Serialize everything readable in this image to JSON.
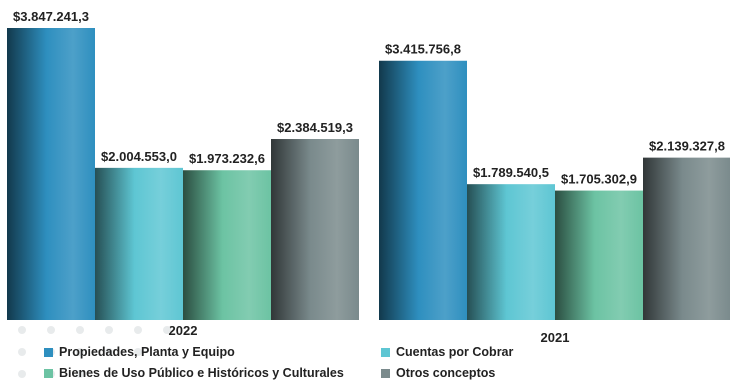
{
  "chart_data": {
    "type": "bar",
    "categories": [
      "2022",
      "2021"
    ],
    "series": [
      {
        "name": "Propiedades, Planta y Equipo",
        "values": [
          3847241.3,
          3415756.8
        ],
        "labels": [
          "$3.847.241,3",
          "$3.415.756,8"
        ],
        "color": "#2e8fbf"
      },
      {
        "name": "Cuentas por Cobrar",
        "values": [
          2004553.0,
          1789540.5
        ],
        "labels": [
          "$2.004.553,0",
          "$1.789.540,5"
        ],
        "color": "#5ec6d3"
      },
      {
        "name": "Bienes de Uso Público e Históricos y Culturales",
        "values": [
          1973232.6,
          1705302.9
        ],
        "labels": [
          "$1.973.232,6",
          "$1.705.302,9"
        ],
        "color": "#6cc3a3"
      },
      {
        "name": "Otros conceptos",
        "values": [
          2384519.3,
          2139327.8
        ],
        "labels": [
          "$2.384.519,3",
          "$2.139.327,8"
        ],
        "color": "#7a8a8c"
      }
    ],
    "title": "",
    "xlabel": "",
    "ylabel": "",
    "ylim": [
      0,
      3847241.3
    ],
    "grid": false,
    "legend": "bottom"
  }
}
